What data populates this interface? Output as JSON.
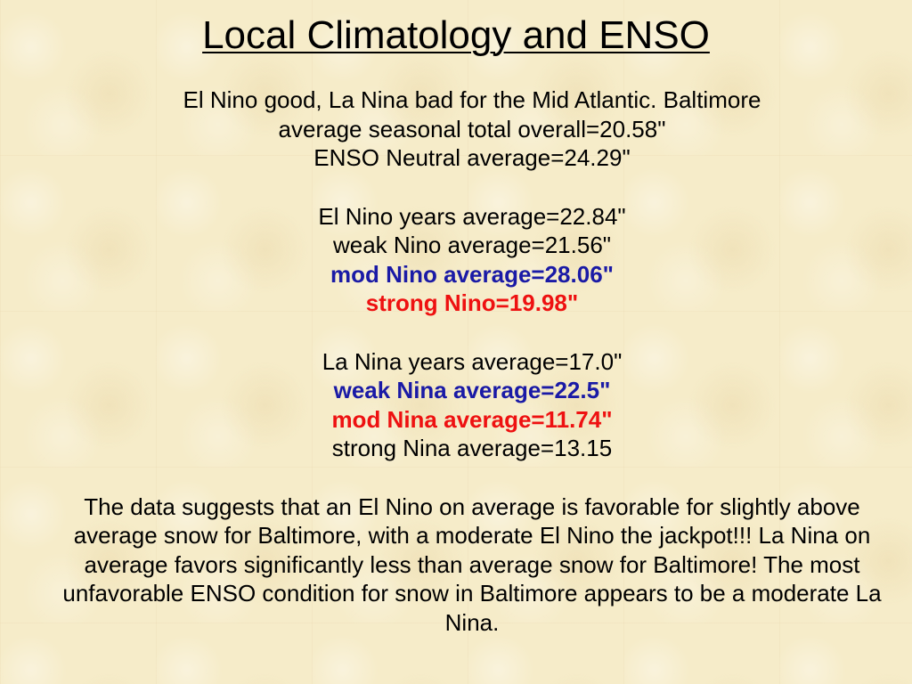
{
  "slide": {
    "title": "Local Climatology and ENSO",
    "intro": {
      "line1": "El Nino good, La Nina bad for the Mid Atlantic.  Baltimore",
      "line2": "average seasonal total overall=20.58\"",
      "line3": "ENSO Neutral average=24.29\""
    },
    "el_nino": {
      "years_avg": "El Nino years average=22.84\"",
      "weak": "weak Nino average=21.56\"",
      "moderate": "mod Nino average=28.06\"",
      "strong": "strong Nino=19.98\""
    },
    "la_nina": {
      "years_avg": "La Nina years average=17.0\"",
      "weak": "weak Nina average=22.5\"",
      "moderate": "mod Nina average=11.74\"",
      "strong": "strong Nina average=13.15"
    },
    "conclusion": "The data suggests that an El Nino on average is favorable for slightly above average snow for Baltimore, with a moderate El Nino the jackpot!!! La Nina on average favors significantly less than average snow for Baltimore! The most unfavorable ENSO condition for snow in Baltimore appears to be a moderate La Nina."
  },
  "colors": {
    "background": "#f6ecc9",
    "highlight_blue": "#1a1aa6",
    "highlight_red": "#ee1111"
  }
}
